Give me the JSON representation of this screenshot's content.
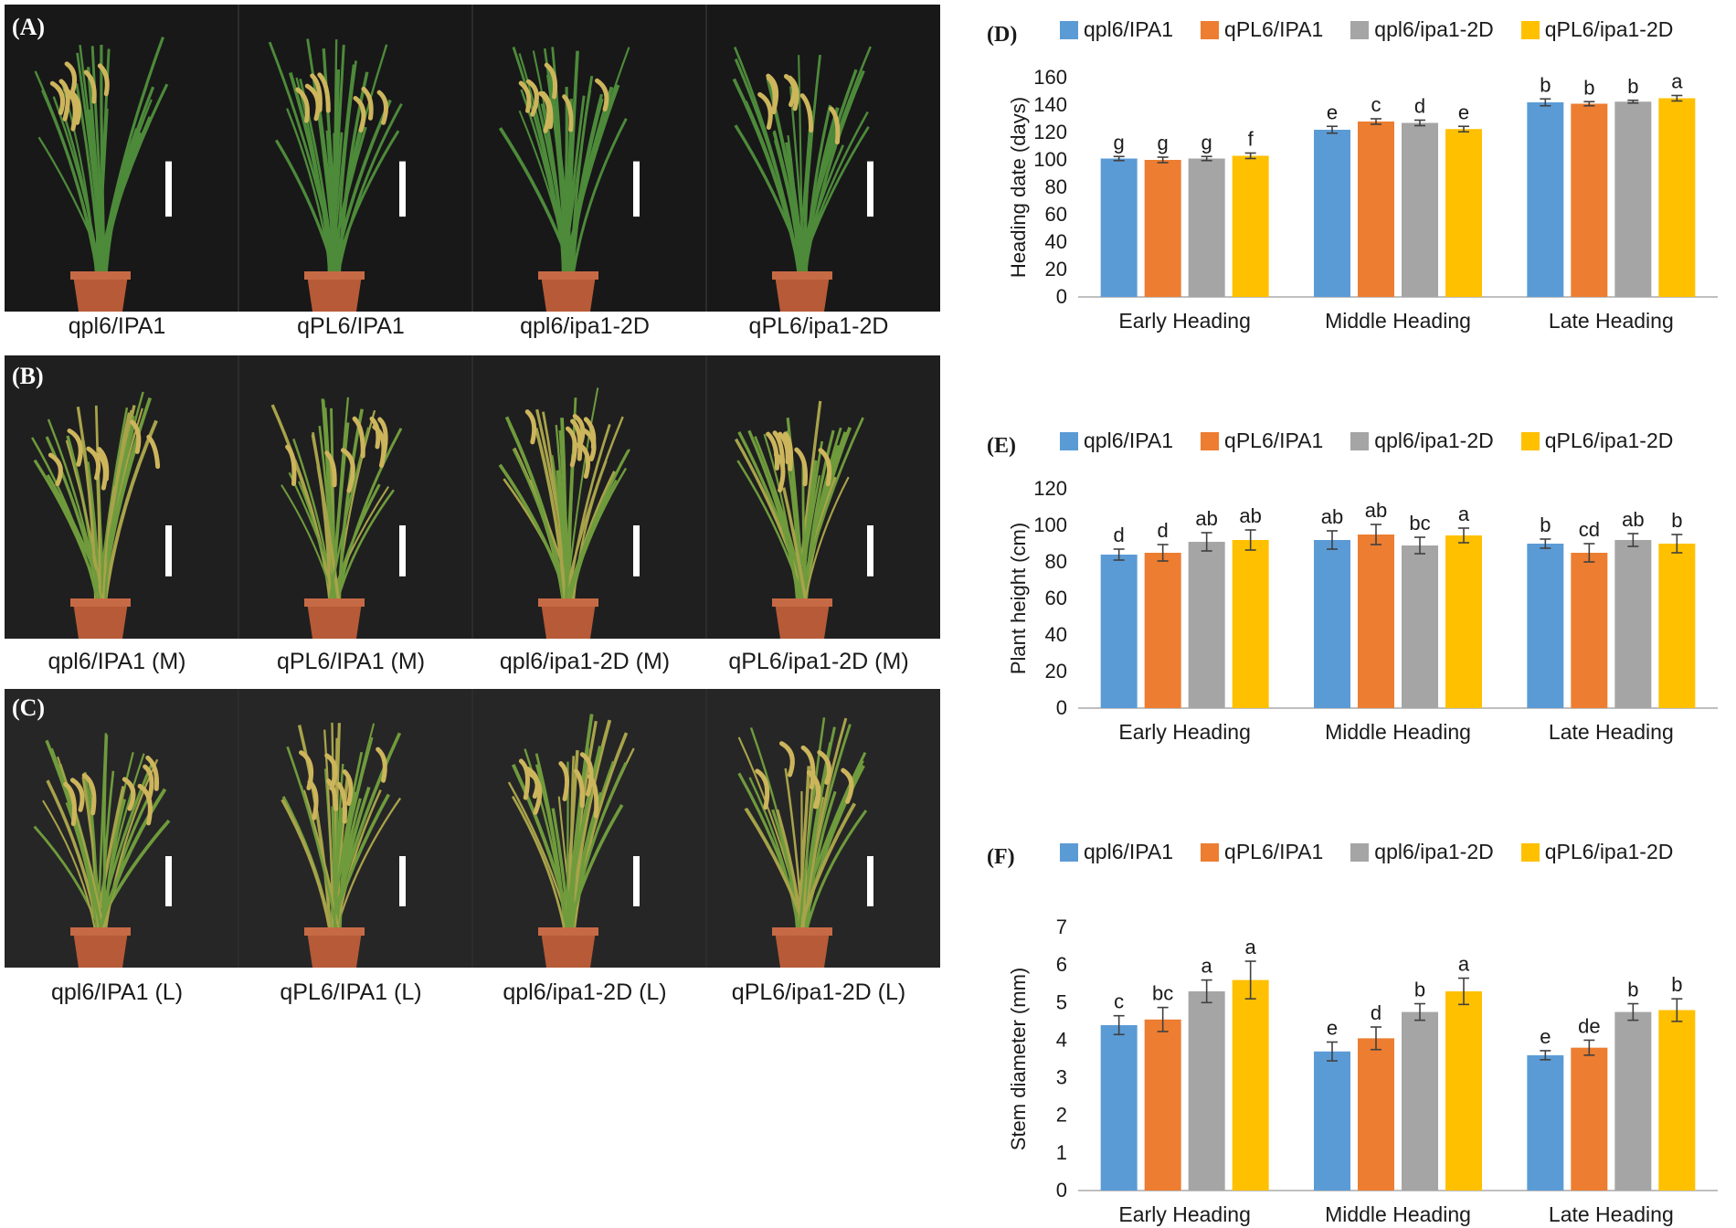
{
  "photo_panels": [
    {
      "letter": "(A)",
      "bg": "#181818",
      "captions": [
        "qpl6/IPA1",
        "qPL6/IPA1",
        "qpl6/ipa1-2D",
        "qPL6/ipa1-2D"
      ]
    },
    {
      "letter": "(B)",
      "bg": "#1f1f1f",
      "captions": [
        "qpl6/IPA1 (M)",
        "qPL6/IPA1 (M)",
        "qpl6/ipa1-2D (M)",
        "qPL6/ipa1-2D (M)"
      ]
    },
    {
      "letter": "(C)",
      "bg": "#262626",
      "captions": [
        "qpl6/IPA1 (L)",
        "qPL6/IPA1 (L)",
        "qpl6/ipa1-2D (L)",
        "qPL6/ipa1-2D (L)"
      ]
    }
  ],
  "colors": {
    "s1": "#5b9bd5",
    "s2": "#ed7d31",
    "s3": "#a5a5a5",
    "s4": "#ffc000",
    "pot": "#b65a37",
    "leaf": "#4d8a3a",
    "panicle": "#cdb55c",
    "scalebar": "#ffffff"
  },
  "chart_data": [
    {
      "letter": "(D)",
      "type": "bar",
      "categories": [
        "Early Heading",
        "Middle Heading",
        "Late Heading"
      ],
      "ylabel": "Heading date (days)",
      "ylim": [
        0,
        160
      ],
      "yticks": [
        0,
        20,
        40,
        60,
        80,
        100,
        120,
        140,
        160
      ],
      "series": [
        {
          "name": "qpl6/IPA1",
          "values": [
            101,
            122,
            142
          ],
          "errors": [
            1.5,
            2.5,
            2.5
          ],
          "letters": [
            "g",
            "e",
            "b"
          ]
        },
        {
          "name": "qPL6/IPA1",
          "values": [
            100,
            128,
            141
          ],
          "errors": [
            2,
            2,
            1.5
          ],
          "letters": [
            "g",
            "c",
            "b"
          ]
        },
        {
          "name": "qpl6/ipa1-2D",
          "values": [
            101,
            127,
            142.5
          ],
          "errors": [
            1.5,
            2,
            1
          ],
          "letters": [
            "g",
            "d",
            "b"
          ]
        },
        {
          "name": "qPL6/ipa1-2D",
          "values": [
            103,
            122.5,
            145
          ],
          "errors": [
            2,
            2,
            2
          ],
          "letters": [
            "f",
            "e",
            "a"
          ]
        }
      ]
    },
    {
      "letter": "(E)",
      "type": "bar",
      "categories": [
        "Early Heading",
        "Middle Heading",
        "Late Heading"
      ],
      "ylabel": "Plant height (cm)",
      "ylim": [
        0,
        120
      ],
      "yticks": [
        0,
        20,
        40,
        60,
        80,
        100,
        120
      ],
      "series": [
        {
          "name": "qpl6/IPA1",
          "values": [
            84,
            92,
            90
          ],
          "errors": [
            3,
            5,
            2.5
          ],
          "letters": [
            "d",
            "ab",
            "b"
          ]
        },
        {
          "name": "qPL6/IPA1",
          "values": [
            85,
            95,
            85
          ],
          "errors": [
            4.5,
            5.5,
            5
          ],
          "letters": [
            "d",
            "ab",
            "cd"
          ]
        },
        {
          "name": "qpl6/ipa1-2D",
          "values": [
            91,
            89,
            92
          ],
          "errors": [
            5,
            4.5,
            3.5
          ],
          "letters": [
            "ab",
            "bc",
            "ab"
          ]
        },
        {
          "name": "qPL6/ipa1-2D",
          "values": [
            92,
            94.5,
            90
          ],
          "errors": [
            5.5,
            4,
            5
          ],
          "letters": [
            "ab",
            "a",
            "b"
          ]
        }
      ]
    },
    {
      "letter": "(F)",
      "type": "bar",
      "categories": [
        "Early Heading",
        "Middle Heading",
        "Late Heading"
      ],
      "ylabel": "Stem diameter (mm)",
      "ylim": [
        0,
        7
      ],
      "yticks": [
        0,
        1,
        2,
        3,
        4,
        5,
        6,
        7
      ],
      "series": [
        {
          "name": "qpl6/IPA1",
          "values": [
            4.4,
            3.7,
            3.6
          ],
          "errors": [
            0.25,
            0.25,
            0.12
          ],
          "letters": [
            "c",
            "e",
            "e"
          ]
        },
        {
          "name": "qPL6/IPA1",
          "values": [
            4.55,
            4.05,
            3.8
          ],
          "errors": [
            0.32,
            0.3,
            0.2
          ],
          "letters": [
            "bc",
            "d",
            "de"
          ]
        },
        {
          "name": "qpl6/ipa1-2D",
          "values": [
            5.3,
            4.75,
            4.75
          ],
          "errors": [
            0.3,
            0.22,
            0.22
          ],
          "letters": [
            "a",
            "b",
            "b"
          ]
        },
        {
          "name": "qPL6/ipa1-2D",
          "values": [
            5.6,
            5.3,
            4.8
          ],
          "errors": [
            0.5,
            0.35,
            0.3
          ],
          "letters": [
            "a",
            "a",
            "b"
          ]
        }
      ]
    }
  ]
}
